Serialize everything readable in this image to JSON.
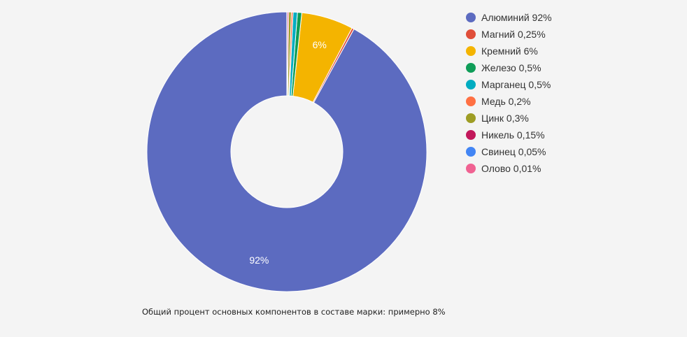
{
  "chart_data": {
    "type": "pie",
    "donut": true,
    "legend_position": "right",
    "series": [
      {
        "name": "Алюминий 92%",
        "value": 92,
        "color": "#5c6bc0",
        "data_label": "92%"
      },
      {
        "name": "Магний 0,25%",
        "value": 0.25,
        "color": "#e04e39",
        "data_label": ""
      },
      {
        "name": "Кремний 6%",
        "value": 6,
        "color": "#f4b400",
        "data_label": "6%"
      },
      {
        "name": "Железо 0,5%",
        "value": 0.5,
        "color": "#0f9d58",
        "data_label": ""
      },
      {
        "name": "Марганец 0,5%",
        "value": 0.5,
        "color": "#00acc1",
        "data_label": ""
      },
      {
        "name": "Медь 0,2%",
        "value": 0.2,
        "color": "#ff7043",
        "data_label": ""
      },
      {
        "name": "Цинк 0,3%",
        "value": 0.3,
        "color": "#9e9d24",
        "data_label": ""
      },
      {
        "name": "Никель 0,15%",
        "value": 0.15,
        "color": "#c2185b",
        "data_label": ""
      },
      {
        "name": "Свинец 0,05%",
        "value": 0.05,
        "color": "#4285f4",
        "data_label": ""
      },
      {
        "name": "Олово 0,01%",
        "value": 0.01,
        "color": "#f06292",
        "data_label": ""
      }
    ]
  },
  "caption": "Общий процент основных компонентов в составе марки: примерно 8%"
}
